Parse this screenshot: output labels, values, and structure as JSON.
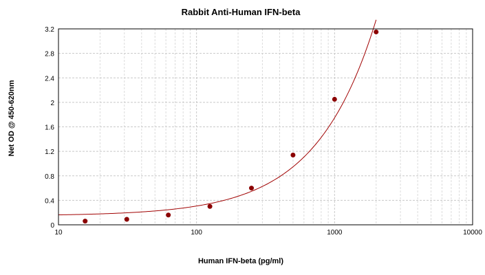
{
  "chart_data": {
    "type": "scatter",
    "title": "Rabbit Anti-Human IFN-beta",
    "xlabel": "Human IFN-beta (pg/ml)",
    "ylabel": "Net OD @ 450-620nm",
    "x_scale": "log",
    "xlim": [
      10,
      10000
    ],
    "ylim": [
      0,
      3.2
    ],
    "x_ticks": [
      "10",
      "100",
      "1000",
      "10000"
    ],
    "y_ticks": [
      "0",
      "0.4",
      "0.8",
      "1.2",
      "1.6",
      "2",
      "2.4",
      "2.8",
      "3.2"
    ],
    "grid": true,
    "series": [
      {
        "x": [
          15.6,
          31.25,
          62.5,
          125,
          250,
          500,
          1000,
          2000
        ],
        "y": [
          0.06,
          0.09,
          0.16,
          0.3,
          0.6,
          1.14,
          2.05,
          3.15
        ]
      }
    ],
    "fit_curve": true,
    "colors": {
      "marker": "#8b0000",
      "curve": "#a00000",
      "grid": "#c8c8c8"
    }
  }
}
